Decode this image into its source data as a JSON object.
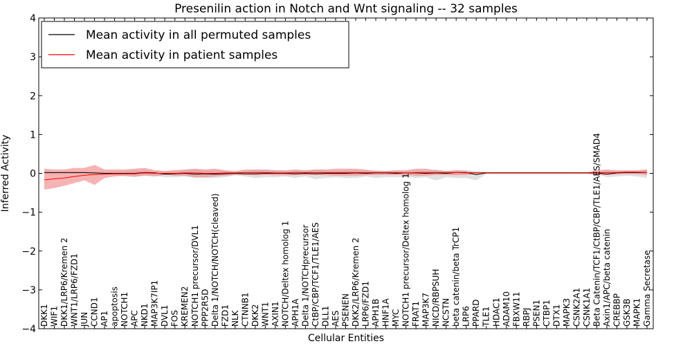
{
  "chart_data": {
    "type": "line",
    "title": "Presenilin action in Notch and Wnt signaling -- 32 samples",
    "xlabel": "Cellular Entities",
    "ylabel": "Inferred Activity",
    "ylim": [
      -4,
      4
    ],
    "yticks": [
      -4,
      -3,
      -2,
      -1,
      0,
      1,
      2,
      3,
      4
    ],
    "categories": [
      "DKK1",
      "WIF1",
      "DKK1/LRP6/Kremen 2",
      "WNT1/LRP6/FZD1",
      "JUN",
      "CCND1",
      "AP1",
      "apoptosis",
      "NOTCH1",
      "APC",
      "NKD1",
      "MAP3K7IP1",
      "DVL1",
      "FOS",
      "KREMEN2",
      "NOTCH1 precursor/DVL1",
      "PPP2R5D",
      "Delta 1/NOTCH/NOTCH(cleaved)",
      "FZD1",
      "NLK",
      "CTNNB1",
      "DKK2",
      "WNT1",
      "AXIN1",
      "NOTCH/Deltex homolog 1",
      "APH1A",
      "Delta 1/NOTCHprecursor",
      "CtBP/CBP/TCF1/TLE1/AES",
      "DLL1",
      "AES",
      "PSENEN",
      "DKK2/LRP6/Kremen 2",
      "LRP6/FZD1",
      "APH1B",
      "HNF1A",
      "MYC",
      "NOTCH1 precursor/Deltex homolog 1",
      "FRAT1",
      "MAP3K7",
      "NICD/RBPSUH",
      "NCSTN",
      "beta catenin/beta TrCP1",
      "LRP6",
      "PPARD",
      "TLE1",
      "HDAC1",
      "ADAM10",
      "FBXW11",
      "RBPJ",
      "PSEN1",
      "CTBP1",
      "DTX1",
      "MAPK3",
      "CSNK2A1",
      "CSNK1A1",
      "Beta Catenin/TCF1/CtBP/CBP/TLE1/AES/SMAD4",
      "Axin1/APC/beta catenin",
      "CREBBP",
      "GSK3B",
      "MAPK1",
      "Gamma Secretase"
    ],
    "series": [
      {
        "name": "Mean activity in all permuted samples",
        "color": "#000000",
        "values": [
          0.02,
          0.02,
          0.02,
          0.02,
          0.02,
          0.01,
          0.0,
          0.0,
          0.0,
          0.0,
          0.02,
          0.01,
          -0.02,
          -0.01,
          0.0,
          -0.02,
          -0.01,
          -0.02,
          -0.01,
          0.0,
          -0.01,
          -0.01,
          0.0,
          0.0,
          0.0,
          -0.01,
          0.0,
          -0.01,
          0.0,
          0.0,
          0.0,
          0.01,
          0.0,
          0.01,
          0.01,
          0.0,
          0.01,
          0.01,
          0.0,
          0.01,
          0.0,
          0.02,
          0.02,
          -0.03,
          0.01,
          0.01,
          0.01,
          0.01,
          0.01,
          0.01,
          0.01,
          0.01,
          0.01,
          0.01,
          0.01,
          0.01,
          -0.02,
          0.01,
          0.02,
          0.02,
          0.02
        ],
        "band_low": [
          -0.02,
          -0.01,
          -0.01,
          -0.01,
          0.0,
          -0.02,
          -0.03,
          -0.06,
          -0.08,
          -0.1,
          -0.05,
          -0.06,
          -0.1,
          -0.1,
          -0.08,
          -0.12,
          -0.12,
          -0.12,
          -0.1,
          -0.05,
          -0.08,
          -0.12,
          -0.1,
          -0.1,
          -0.08,
          -0.12,
          -0.08,
          -0.15,
          -0.12,
          -0.1,
          -0.12,
          -0.12,
          -0.08,
          -0.12,
          -0.1,
          -0.1,
          -0.1,
          -0.12,
          -0.1,
          -0.18,
          -0.1,
          -0.12,
          -0.12,
          -0.18,
          -0.02,
          -0.02,
          -0.02,
          -0.02,
          -0.02,
          -0.02,
          -0.02,
          -0.02,
          -0.02,
          -0.02,
          -0.02,
          -0.02,
          -0.1,
          -0.08,
          -0.06,
          -0.08,
          -0.12
        ],
        "band_high": [
          0.05,
          0.05,
          0.05,
          0.05,
          0.05,
          0.04,
          0.04,
          0.05,
          0.06,
          0.08,
          0.08,
          0.06,
          0.06,
          0.06,
          0.08,
          0.1,
          0.08,
          0.08,
          0.06,
          0.04,
          0.06,
          0.08,
          0.08,
          0.08,
          0.06,
          0.08,
          0.06,
          0.1,
          0.08,
          0.06,
          0.08,
          0.08,
          0.06,
          0.08,
          0.06,
          0.06,
          0.06,
          0.08,
          0.06,
          0.1,
          0.06,
          0.08,
          0.08,
          0.06,
          0.02,
          0.02,
          0.02,
          0.02,
          0.02,
          0.02,
          0.02,
          0.02,
          0.02,
          0.02,
          0.02,
          0.02,
          0.06,
          0.06,
          0.06,
          0.06,
          0.1
        ]
      },
      {
        "name": "Mean activity in patient samples",
        "color": "#ff0000",
        "values": [
          -0.17,
          -0.14,
          -0.12,
          -0.08,
          -0.05,
          -0.03,
          -0.02,
          -0.01,
          -0.01,
          -0.01,
          0.01,
          0.0,
          0.0,
          0.0,
          0.01,
          0.01,
          0.0,
          0.0,
          0.01,
          0.01,
          0.02,
          0.02,
          0.02,
          0.01,
          0.01,
          0.02,
          0.02,
          0.02,
          0.02,
          0.02,
          0.02,
          0.02,
          0.02,
          0.02,
          0.02,
          0.02,
          0.01,
          0.02,
          0.02,
          0.02,
          0.02,
          0.02,
          0.01,
          0.02,
          0.02,
          0.02,
          0.02,
          0.02,
          0.02,
          0.02,
          0.02,
          0.02,
          0.02,
          0.02,
          0.02,
          0.02,
          0.02,
          0.02,
          0.03,
          0.03,
          0.02
        ],
        "band_low": [
          -0.42,
          -0.38,
          -0.32,
          -0.25,
          -0.18,
          -0.3,
          -0.12,
          -0.08,
          -0.06,
          -0.08,
          -0.06,
          -0.08,
          -0.04,
          -0.06,
          -0.06,
          -0.1,
          -0.1,
          -0.08,
          -0.06,
          -0.04,
          -0.04,
          -0.05,
          -0.04,
          -0.05,
          -0.05,
          -0.05,
          -0.04,
          -0.04,
          -0.05,
          -0.06,
          -0.06,
          -0.06,
          -0.05,
          -0.04,
          -0.04,
          -0.04,
          -0.04,
          -0.06,
          -0.06,
          -0.04,
          -0.04,
          -0.05,
          -0.04,
          -0.02,
          0.0,
          0.0,
          0.0,
          0.0,
          0.0,
          0.0,
          0.0,
          0.0,
          0.0,
          0.0,
          0.0,
          -0.04,
          -0.04,
          -0.02,
          -0.02,
          -0.02,
          -0.04
        ],
        "band_high": [
          0.12,
          0.1,
          0.1,
          0.14,
          0.14,
          0.22,
          0.1,
          0.1,
          0.1,
          0.12,
          0.14,
          0.08,
          0.06,
          0.08,
          0.1,
          0.12,
          0.1,
          0.12,
          0.08,
          0.06,
          0.1,
          0.1,
          0.1,
          0.08,
          0.08,
          0.1,
          0.08,
          0.1,
          0.1,
          0.12,
          0.12,
          0.12,
          0.1,
          0.06,
          0.06,
          0.08,
          0.08,
          0.12,
          0.12,
          0.08,
          0.06,
          0.08,
          0.06,
          0.02,
          0.02,
          0.02,
          0.02,
          0.02,
          0.02,
          0.02,
          0.02,
          0.02,
          0.02,
          0.02,
          0.02,
          0.08,
          0.1,
          0.08,
          0.08,
          0.08,
          0.1
        ]
      }
    ],
    "legend_location": "upper-left",
    "band_colors": {
      "permuted": "#c8c8c8",
      "patient": "#f08080"
    }
  }
}
